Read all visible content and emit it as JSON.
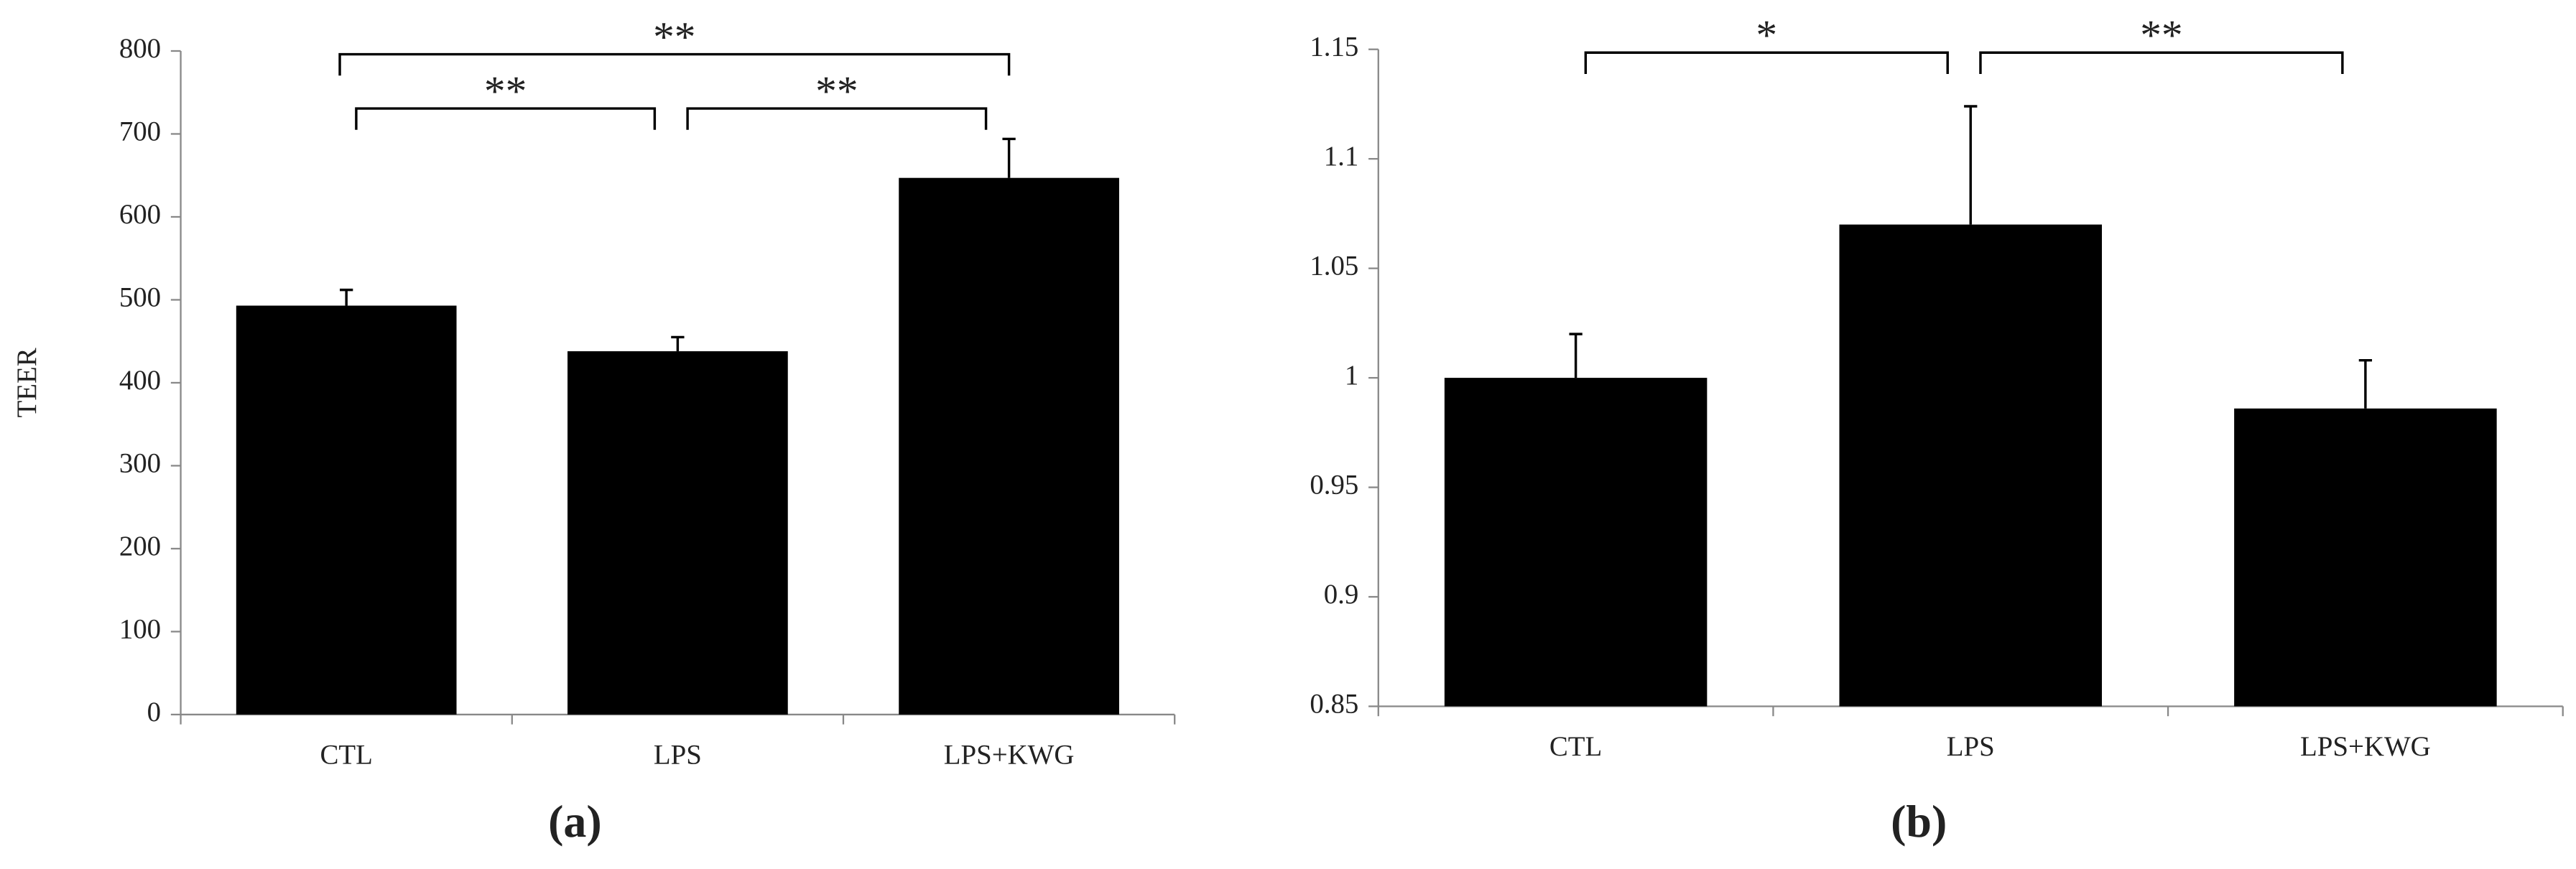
{
  "chart_data": [
    {
      "type": "bar",
      "y_label": "TEER",
      "panel_label": "(a)",
      "categories": [
        "CTL",
        "LPS",
        "LPS+KWG"
      ],
      "values": [
        493,
        438,
        647
      ],
      "errors": [
        19,
        17,
        47
      ],
      "color": "#000000",
      "ylim": [
        0,
        800
      ],
      "yticks": [
        0,
        100,
        200,
        300,
        400,
        500,
        600,
        700,
        800
      ],
      "annotations": [
        {
          "between": [
            0,
            2
          ],
          "label": "**"
        },
        {
          "between": [
            0,
            1
          ],
          "label": "**"
        },
        {
          "between": [
            1,
            2
          ],
          "label": "**"
        }
      ]
    },
    {
      "type": "bar",
      "panel_label": "(b)",
      "categories": [
        "CTL",
        "LPS",
        "LPS+KWG"
      ],
      "values": [
        1.0,
        1.07,
        0.986
      ],
      "errors": [
        0.02,
        0.054,
        0.022
      ],
      "color": "#000000",
      "ylim": [
        0.85,
        1.15
      ],
      "yticks": [
        0.85,
        0.9,
        0.95,
        1,
        1.05,
        1.1,
        1.15
      ],
      "annotations": [
        {
          "between": [
            0,
            1
          ],
          "label": "*"
        },
        {
          "between": [
            1,
            2
          ],
          "label": "**"
        }
      ]
    }
  ]
}
